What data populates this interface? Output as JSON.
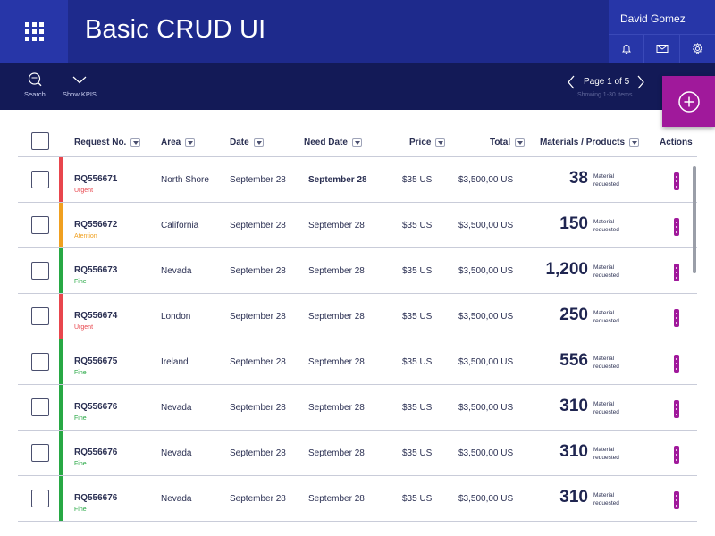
{
  "header": {
    "title": "Basic CRUD UI",
    "user_name": "David Gomez",
    "icons": [
      "bell-icon",
      "mail-icon",
      "gear-icon"
    ]
  },
  "toolbar": {
    "search_label": "Search",
    "kpis_label": "Show KPIS",
    "page_text": "Page 1 of  5",
    "showing_text": "Showing 1-30 items"
  },
  "colors": {
    "header": "#1e2a8c",
    "toolbar": "#131a57",
    "accent": "#a0199b",
    "urgent": "#e8464d",
    "attention": "#f0a020",
    "fine": "#27a844"
  },
  "table": {
    "columns": {
      "request": "Request No.",
      "area": "Area",
      "date": "Date",
      "need_date": "Need Date",
      "price": "Price",
      "total": "Total",
      "materials": "Materials / Products",
      "actions": "Actions"
    },
    "rows": [
      {
        "request": "RQ556671",
        "status": "Urgent",
        "status_key": "urgent",
        "area": "North Shore",
        "date": "September 28",
        "need_date": "September 28",
        "need_bold": true,
        "price": "$35 US",
        "total": "$3,500,00 US",
        "materials": "38",
        "mat_label_1": "Material",
        "mat_label_2": "requested"
      },
      {
        "request": "RQ556672",
        "status": "Atention",
        "status_key": "attention",
        "area": "California",
        "date": "September 28",
        "need_date": "September 28",
        "need_bold": false,
        "price": "$35 US",
        "total": "$3,500,00 US",
        "materials": "150",
        "mat_label_1": "Material",
        "mat_label_2": "requested"
      },
      {
        "request": "RQ556673",
        "status": "Fine",
        "status_key": "fine",
        "area": "Nevada",
        "date": "September 28",
        "need_date": "September 28",
        "need_bold": false,
        "price": "$35 US",
        "total": "$3,500,00 US",
        "materials": "1,200",
        "mat_label_1": "Material",
        "mat_label_2": "requested"
      },
      {
        "request": "RQ556674",
        "status": "Urgent",
        "status_key": "urgent",
        "area": "London",
        "date": "September 28",
        "need_date": "September 28",
        "need_bold": false,
        "price": "$35 US",
        "total": "$3,500,00 US",
        "materials": "250",
        "mat_label_1": "Material",
        "mat_label_2": "requested"
      },
      {
        "request": "RQ556675",
        "status": "Fine",
        "status_key": "fine",
        "area": "Ireland",
        "date": "September 28",
        "need_date": "September 28",
        "need_bold": false,
        "price": "$35 US",
        "total": "$3,500,00 US",
        "materials": "556",
        "mat_label_1": "Material",
        "mat_label_2": "requested"
      },
      {
        "request": "RQ556676",
        "status": "Fine",
        "status_key": "fine",
        "area": "Nevada",
        "date": "September 28",
        "need_date": "September 28",
        "need_bold": false,
        "price": "$35 US",
        "total": "$3,500,00 US",
        "materials": "310",
        "mat_label_1": "Material",
        "mat_label_2": "requested"
      },
      {
        "request": "RQ556676",
        "status": "Fine",
        "status_key": "fine",
        "area": "Nevada",
        "date": "September 28",
        "need_date": "September 28",
        "need_bold": false,
        "price": "$35 US",
        "total": "$3,500,00 US",
        "materials": "310",
        "mat_label_1": "Material",
        "mat_label_2": "requested"
      },
      {
        "request": "RQ556676",
        "status": "Fine",
        "status_key": "fine",
        "area": "Nevada",
        "date": "September 28",
        "need_date": "September 28",
        "need_bold": false,
        "price": "$35 US",
        "total": "$3,500,00 US",
        "materials": "310",
        "mat_label_1": "Material",
        "mat_label_2": "requested"
      }
    ]
  }
}
